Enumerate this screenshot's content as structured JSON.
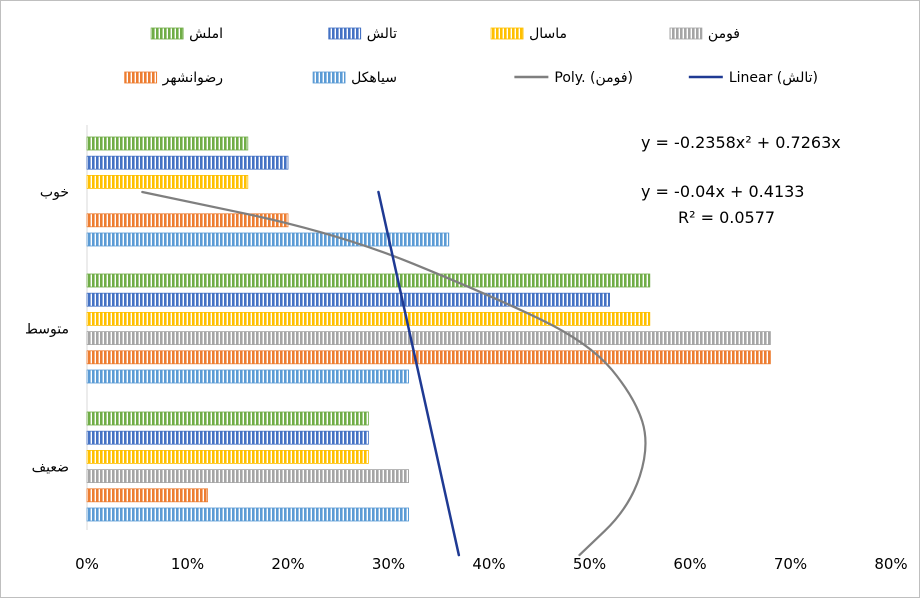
{
  "chart_data": {
    "type": "bar",
    "orientation": "horizontal",
    "categories": [
      "خوب",
      "متوسط",
      "ضعیف"
    ],
    "series": [
      {
        "name": "املش",
        "color": "#70ad47",
        "values": [
          16,
          56,
          28
        ]
      },
      {
        "name": "تالش",
        "color": "#4472c4",
        "values": [
          20,
          52,
          28
        ]
      },
      {
        "name": "ماسال",
        "color": "#ffc000",
        "values": [
          16,
          56,
          28
        ]
      },
      {
        "name": "فومن",
        "color": "#a5a5a5",
        "values": [
          0,
          68,
          32
        ]
      },
      {
        "name": "رضوانشهر",
        "color": "#ed7d31",
        "values": [
          20,
          68,
          12
        ]
      },
      {
        "name": "سیاهکل",
        "color": "#5b9bd5",
        "values": [
          36,
          32,
          32
        ]
      }
    ],
    "trendlines": [
      {
        "name": "Poly. (فومن)",
        "kind": "poly2",
        "series": "فومن",
        "color": "#7f7f7f",
        "points": [
          [
            5.5,
            1.0
          ],
          [
            25,
            1.3
          ],
          [
            40,
            1.75
          ],
          [
            50,
            2.1
          ],
          [
            54.5,
            2.5
          ],
          [
            56,
            2.85
          ],
          [
            54,
            3.3
          ],
          [
            49,
            3.65
          ]
        ]
      },
      {
        "name": "Linear (تالش)",
        "kind": "linear",
        "series": "تالش",
        "color": "#1f3a93",
        "points": [
          [
            29,
            1.0
          ],
          [
            37,
            3.65
          ]
        ]
      }
    ],
    "annotations": {
      "poly_eq": "y = -0.2358x² + 0.7263x",
      "lin_eq": "y = -0.04x + 0.4133",
      "r2": "R² = 0.0577"
    },
    "x_ticks": [
      "0%",
      "10%",
      "20%",
      "30%",
      "40%",
      "50%",
      "60%",
      "70%",
      "80%"
    ],
    "xlim": [
      0,
      80
    ],
    "grid": false,
    "legend_position": "top"
  }
}
